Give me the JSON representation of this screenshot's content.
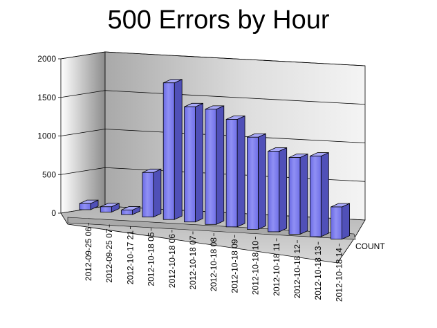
{
  "chart_data": {
    "type": "bar",
    "title": "500 Errors by Hour",
    "categories": [
      "2012-09-25 06",
      "2012-09-25 07",
      "2012-10-17 21",
      "2012-10-18 05",
      "2012-10-18 06",
      "2012-10-18 07",
      "2012-10-18 08",
      "2012-10-18 09",
      "2012-10-18 10",
      "2012-10-18 11",
      "2012-10-18 12",
      "2012-10-18 13",
      "2012-10-18 14"
    ],
    "series": [
      {
        "name": "COUNT",
        "values": [
          80,
          70,
          60,
          580,
          1780,
          1500,
          1500,
          1400,
          1200,
          1050,
          1000,
          1050,
          420
        ]
      }
    ],
    "yticks": [
      "0",
      "500",
      "1000",
      "1500",
      "2000"
    ],
    "ylim": [
      0,
      2000
    ],
    "grid": true,
    "legend": "none",
    "colors": {
      "bar_front": "#7B7BEC",
      "bar_side": "#5050B8",
      "bar_top": "#A8A8F8",
      "wall": "#B8B8B8",
      "floor": "#C8C8C8"
    }
  }
}
